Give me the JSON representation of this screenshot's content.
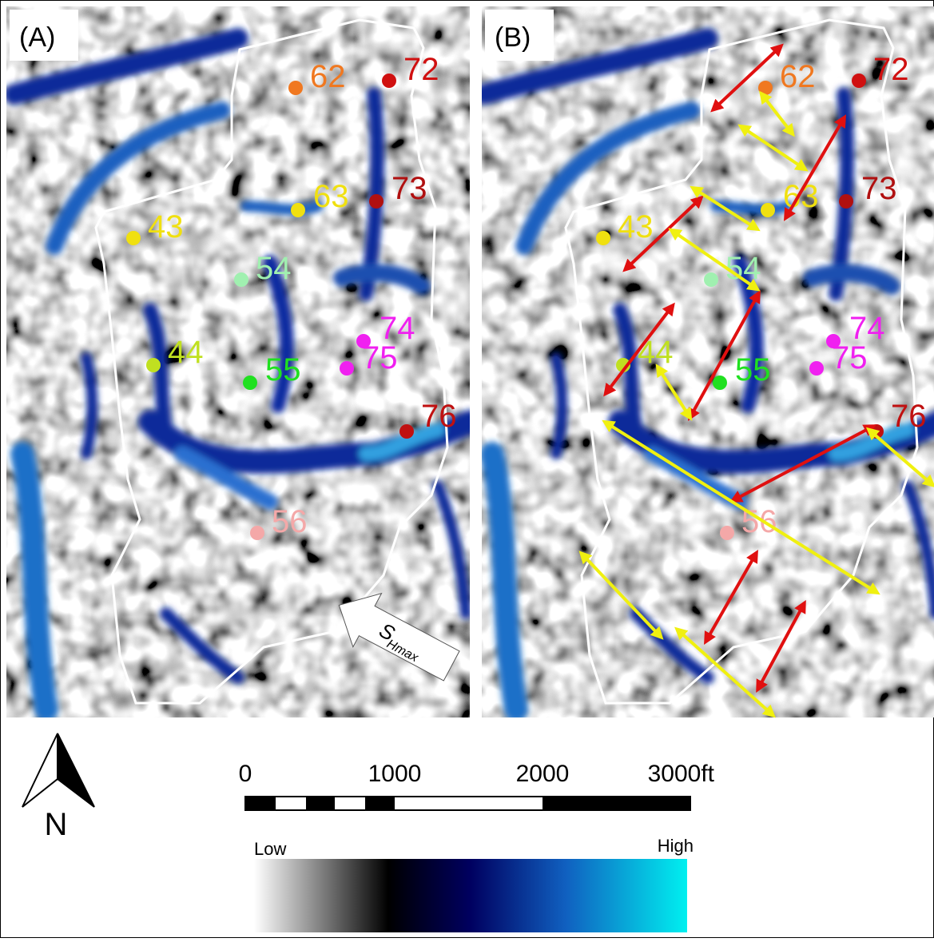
{
  "panels": [
    {
      "label": "(A)",
      "wells": [
        {
          "label": "62",
          "color": "#f07820"
        },
        {
          "label": "72",
          "color": "#d01010"
        },
        {
          "label": "63",
          "color": "#f0e010"
        },
        {
          "label": "73",
          "color": "#b01010"
        },
        {
          "label": "43",
          "color": "#f0e010"
        },
        {
          "label": "54",
          "color": "#a0f0b0"
        },
        {
          "label": "44",
          "color": "#c0e020"
        },
        {
          "label": "55",
          "color": "#20e020"
        },
        {
          "label": "74",
          "color": "#f020f0"
        },
        {
          "label": "75",
          "color": "#f020f0"
        },
        {
          "label": "76",
          "color": "#c01010"
        },
        {
          "label": "56",
          "color": "#f4a8a8"
        }
      ]
    },
    {
      "label": "(B)",
      "wells": [
        {
          "label": "62",
          "color": "#f07820"
        },
        {
          "label": "72",
          "color": "#d01010"
        },
        {
          "label": "63",
          "color": "#f0e010"
        },
        {
          "label": "73",
          "color": "#b01010"
        },
        {
          "label": "43",
          "color": "#f0e010"
        },
        {
          "label": "54",
          "color": "#a0f0b0"
        },
        {
          "label": "44",
          "color": "#c0e020"
        },
        {
          "label": "55",
          "color": "#20e020"
        },
        {
          "label": "74",
          "color": "#f020f0"
        },
        {
          "label": "75",
          "color": "#f020f0"
        },
        {
          "label": "76",
          "color": "#c01010"
        },
        {
          "label": "56",
          "color": "#f4a8a8"
        }
      ]
    }
  ],
  "stress_arrow": {
    "symbol": "S",
    "subscript": "Hmax"
  },
  "north_arrow": {
    "label": "N"
  },
  "scale_bar": {
    "labels": [
      "0",
      "1000",
      "2000",
      "3000ft"
    ]
  },
  "color_bar": {
    "low": "Low",
    "high": "High"
  }
}
